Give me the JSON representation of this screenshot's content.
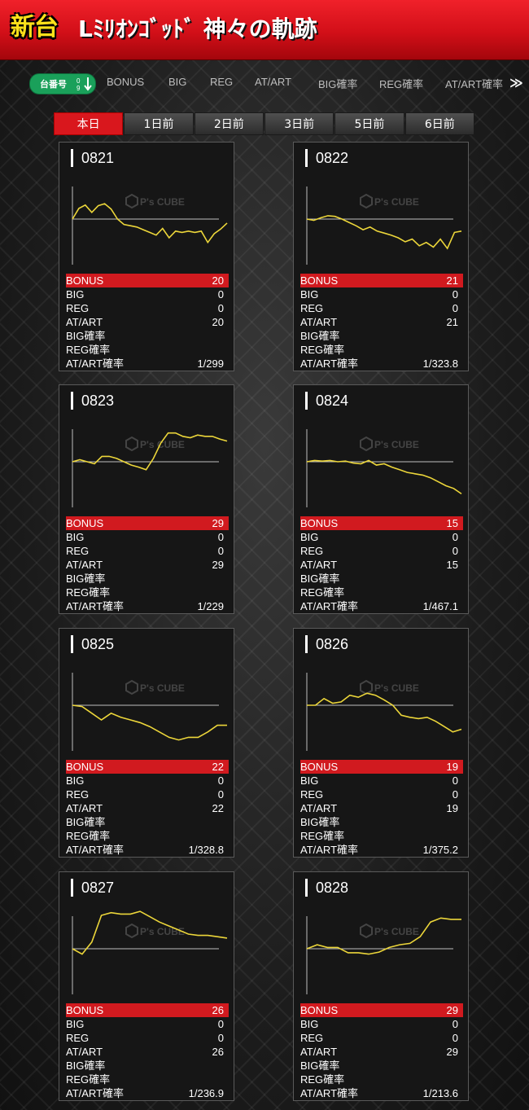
{
  "header": {
    "badge": "新台",
    "title": "Lﾐﾘｵﾝｺﾞｯﾄﾞ 神々の軌跡"
  },
  "sortbar": {
    "machine_no_label": "台番号",
    "items": [
      "BONUS",
      "BIG",
      "REG",
      "AT/ART",
      "BIG確率",
      "REG確率",
      "AT/ART確率"
    ],
    "more_icon": "double-chevron-right-icon"
  },
  "tabs": [
    "本日",
    "1日前",
    "2日前",
    "3日前",
    "5日前",
    "6日前"
  ],
  "active_tab": 0,
  "watermark": "P's CUBE",
  "colors": {
    "accent_red": "#d9171d",
    "graph_line": "#ecd63a",
    "pill_green": "#1aa05a"
  },
  "stat_labels": [
    "BONUS",
    "BIG",
    "REG",
    "AT/ART",
    "BIG確率",
    "REG確率",
    "AT/ART確率"
  ],
  "machines": [
    {
      "no": "0821",
      "bonus": "20",
      "big": "0",
      "reg": "0",
      "at": "20",
      "big_rate": "",
      "reg_rate": "",
      "at_rate": "1/299",
      "graph": [
        0,
        16,
        21,
        10,
        20,
        23,
        15,
        0,
        -8,
        -10,
        -12,
        -16,
        -20,
        -24,
        -14,
        -28,
        -18,
        -20,
        -18,
        -20,
        -18,
        -35,
        -22,
        -15,
        -6
      ]
    },
    {
      "no": "0822",
      "bonus": "21",
      "big": "0",
      "reg": "0",
      "at": "21",
      "big_rate": "",
      "reg_rate": "",
      "at_rate": "1/323.8",
      "graph": [
        0,
        -2,
        2,
        5,
        4,
        0,
        -5,
        -10,
        -16,
        -12,
        -18,
        -21,
        -24,
        -28,
        -34,
        -30,
        -40,
        -35,
        -42,
        -30,
        -44,
        -20,
        -18
      ]
    },
    {
      "no": "0823",
      "bonus": "29",
      "big": "0",
      "reg": "0",
      "at": "29",
      "big_rate": "",
      "reg_rate": "",
      "at_rate": "1/229",
      "graph": [
        0,
        3,
        0,
        -3,
        8,
        8,
        5,
        0,
        -5,
        -8,
        -12,
        5,
        28,
        43,
        43,
        38,
        36,
        40,
        38,
        38,
        34,
        31
      ]
    },
    {
      "no": "0824",
      "bonus": "15",
      "big": "0",
      "reg": "0",
      "at": "15",
      "big_rate": "",
      "reg_rate": "",
      "at_rate": "1/467.1",
      "graph": [
        0,
        2,
        1,
        2,
        0,
        1,
        -2,
        -3,
        2,
        -5,
        -3,
        -8,
        -12,
        -16,
        -18,
        -20,
        -24,
        -30,
        -36,
        -40,
        -48
      ]
    },
    {
      "no": "0825",
      "bonus": "22",
      "big": "0",
      "reg": "0",
      "at": "22",
      "big_rate": "",
      "reg_rate": "",
      "at_rate": "1/328.8",
      "graph": [
        0,
        -2,
        -12,
        -22,
        -12,
        -18,
        -22,
        -26,
        -32,
        -40,
        -48,
        -52,
        -48,
        -48,
        -40,
        -30,
        -30
      ]
    },
    {
      "no": "0826",
      "bonus": "19",
      "big": "0",
      "reg": "0",
      "at": "19",
      "big_rate": "",
      "reg_rate": "",
      "at_rate": "1/375.2",
      "graph": [
        0,
        0,
        10,
        3,
        5,
        15,
        12,
        18,
        15,
        8,
        0,
        -15,
        -18,
        -20,
        -18,
        -24,
        -32,
        -40,
        -36
      ]
    },
    {
      "no": "0827",
      "bonus": "26",
      "big": "0",
      "reg": "0",
      "at": "26",
      "big_rate": "",
      "reg_rate": "",
      "at_rate": "1/236.9",
      "graph": [
        0,
        -8,
        10,
        50,
        54,
        52,
        52,
        56,
        48,
        40,
        34,
        28,
        22,
        20,
        20,
        18,
        16
      ]
    },
    {
      "no": "0828",
      "bonus": "29",
      "big": "0",
      "reg": "0",
      "at": "29",
      "big_rate": "",
      "reg_rate": "",
      "at_rate": "1/213.6",
      "graph": [
        0,
        6,
        2,
        2,
        -6,
        -6,
        -8,
        -5,
        2,
        6,
        8,
        18,
        40,
        46,
        44,
        44
      ]
    }
  ]
}
